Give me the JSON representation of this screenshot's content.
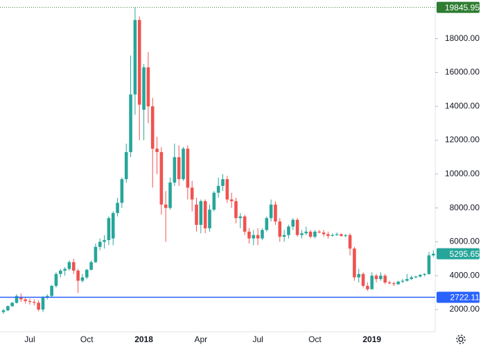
{
  "chart_data": {
    "type": "candlestick",
    "categories": [
      null,
      null,
      null,
      null,
      null,
      null,
      "Jul",
      null,
      null,
      null,
      null,
      null,
      null,
      null,
      null,
      null,
      null,
      null,
      null,
      "Oct",
      null,
      null,
      null,
      null,
      null,
      null,
      null,
      null,
      null,
      null,
      null,
      null,
      "2018",
      null,
      null,
      null,
      null,
      null,
      null,
      null,
      null,
      null,
      null,
      null,
      null,
      "Apr",
      null,
      null,
      null,
      null,
      null,
      null,
      null,
      null,
      null,
      null,
      null,
      null,
      "Jul",
      null,
      null,
      null,
      null,
      null,
      null,
      null,
      null,
      null,
      null,
      null,
      null,
      "Oct",
      null,
      null,
      null,
      null,
      null,
      null,
      null,
      null,
      null,
      null,
      null,
      null,
      "2019",
      null,
      null,
      null,
      null,
      null,
      null,
      null,
      null,
      null,
      null,
      null,
      null,
      null,
      null
    ],
    "open": [
      1850,
      1950,
      2200,
      2400,
      2750,
      2600,
      2500,
      2450,
      2400,
      2000,
      2700,
      2800,
      3400,
      4100,
      4300,
      4400,
      4800,
      4300,
      3700,
      3900,
      4350,
      4800,
      5700,
      6000,
      6100,
      6200,
      7700,
      8300,
      9700,
      11300,
      14700,
      19100,
      13800,
      16300,
      14000,
      11500,
      11300,
      8200,
      8000,
      9500,
      11000,
      9700,
      11500,
      9200,
      8200,
      7000,
      8400,
      6800,
      7900,
      8900,
      9300,
      9700,
      8500,
      8400,
      7400,
      7500,
      6600,
      6200,
      6400,
      6200,
      6700,
      7400,
      8200,
      7200,
      6300,
      6400,
      6900,
      7300,
      6400,
      6500,
      6600,
      6300,
      6600,
      6550,
      6450,
      6350,
      6400,
      6450,
      6350,
      6400,
      5600,
      3900,
      4100,
      3400,
      3200,
      4000,
      3800,
      4000,
      3600,
      3550,
      3500,
      3650,
      3700,
      3800,
      3900,
      3950,
      4050,
      4100,
      5200
    ],
    "high": [
      2050,
      2250,
      2450,
      2900,
      2950,
      2700,
      2650,
      2600,
      2550,
      2800,
      2900,
      3450,
      4200,
      4400,
      4500,
      4900,
      5000,
      4400,
      4100,
      4400,
      4900,
      5900,
      6200,
      6400,
      7500,
      7800,
      8600,
      9800,
      11800,
      17000,
      19845.95,
      19300,
      16500,
      17200,
      14500,
      12200,
      11600,
      9000,
      9800,
      11800,
      11700,
      11600,
      11700,
      9600,
      8600,
      8500,
      8500,
      8200,
      9000,
      9800,
      10000,
      9900,
      8900,
      8600,
      7700,
      7600,
      6800,
      6700,
      6800,
      6800,
      7500,
      8500,
      8400,
      7400,
      6700,
      7000,
      7400,
      7400,
      6700,
      6900,
      6700,
      6700,
      6700,
      6700,
      6600,
      6500,
      6550,
      6500,
      6450,
      6500,
      5700,
      4400,
      4200,
      3600,
      4200,
      4100,
      4200,
      4100,
      3700,
      3650,
      3700,
      3800,
      4100,
      4000,
      4000,
      4100,
      4150,
      5400,
      5500
    ],
    "low": [
      1750,
      1900,
      2150,
      2350,
      2450,
      2350,
      2300,
      2250,
      1900,
      1850,
      2600,
      2750,
      3300,
      3900,
      4000,
      4300,
      4100,
      2980,
      3600,
      3800,
      4300,
      4750,
      5500,
      5600,
      5800,
      5800,
      7500,
      8000,
      9500,
      11000,
      13500,
      12000,
      12000,
      13000,
      9200,
      10000,
      7600,
      6000,
      7900,
      9300,
      9300,
      9600,
      8500,
      7800,
      6600,
      6500,
      6500,
      6600,
      7800,
      8600,
      9000,
      8300,
      8000,
      7100,
      6800,
      6400,
      5900,
      5800,
      5800,
      6100,
      6600,
      7200,
      7000,
      6000,
      6000,
      6200,
      6700,
      6300,
      6200,
      6400,
      6200,
      6200,
      6500,
      6300,
      6200,
      6300,
      6350,
      6300,
      6250,
      5200,
      3700,
      3600,
      3300,
      3100,
      3200,
      3600,
      3700,
      3500,
      3500,
      3400,
      3450,
      3550,
      3650,
      3750,
      3850,
      3900,
      3950,
      4050,
      5100
    ],
    "close": [
      1950,
      2200,
      2400,
      2800,
      2600,
      2500,
      2450,
      2400,
      2000,
      2700,
      2800,
      3400,
      4100,
      4300,
      4400,
      4800,
      4300,
      3700,
      3900,
      4350,
      4800,
      5700,
      6000,
      6100,
      7400,
      7700,
      8300,
      9700,
      11300,
      14700,
      19100,
      14100,
      16300,
      14000,
      11500,
      11300,
      8200,
      8000,
      9500,
      11000,
      9700,
      11500,
      9200,
      8500,
      7000,
      8400,
      6800,
      7900,
      8900,
      9300,
      9700,
      8500,
      8400,
      7400,
      7500,
      6600,
      6200,
      6400,
      6200,
      6700,
      7400,
      8200,
      7200,
      6300,
      6400,
      6900,
      7300,
      6400,
      6500,
      6600,
      6300,
      6600,
      6550,
      6450,
      6350,
      6400,
      6450,
      6350,
      6400,
      5600,
      3900,
      4100,
      3400,
      3200,
      4000,
      3800,
      4000,
      3600,
      3550,
      3500,
      3650,
      3700,
      3800,
      3900,
      3950,
      4050,
      4100,
      5200,
      5295.65
    ],
    "up_color": "#26a69a",
    "down_color": "#ef5350",
    "ylim": [
      690,
      20280
    ],
    "yticks": [
      {
        "value": 2000,
        "label": "2000.00"
      },
      {
        "value": 4000,
        "label": "4000.00"
      },
      {
        "value": 6000,
        "label": "6000.00"
      },
      {
        "value": 8000,
        "label": "8000.00"
      },
      {
        "value": 10000,
        "label": "10000.00"
      },
      {
        "value": 12000,
        "label": "12000.00"
      },
      {
        "value": 14000,
        "label": "14000.00"
      },
      {
        "value": 16000,
        "label": "16000.00"
      },
      {
        "value": 18000,
        "label": "18000.00"
      }
    ],
    "price_lines": [
      {
        "value": 19845.95,
        "color": "#2e7d32",
        "style": "dotted"
      },
      {
        "value": 2722.11,
        "color": "#2962ff",
        "style": "solid"
      }
    ],
    "grid": false
  }
}
